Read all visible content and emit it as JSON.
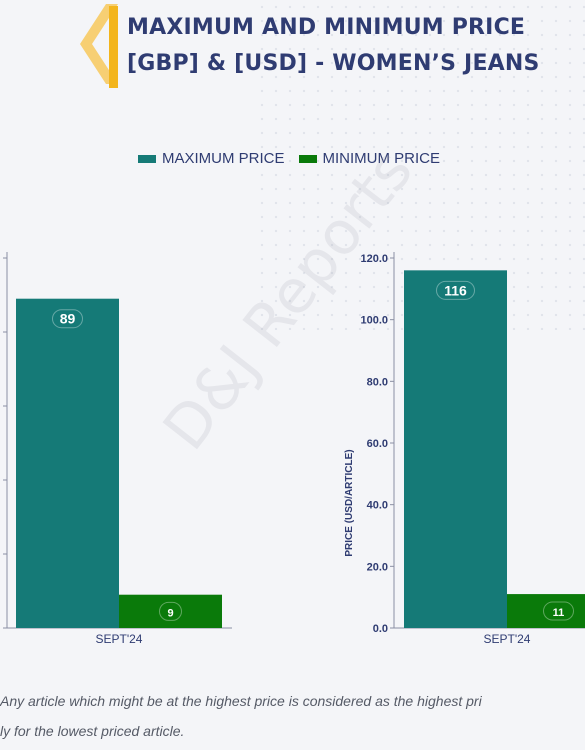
{
  "header": {
    "title_line1": "MAXIMUM AND MINIMUM PRICE",
    "title_line2": "[GBP] & [USD] - WOMEN’S JEANS"
  },
  "legend": [
    {
      "label": "MAXIMUM PRICE",
      "color": "#157a77"
    },
    {
      "label": "MINIMUM PRICE",
      "color": "#0a7a0a"
    }
  ],
  "watermark": "D&J Reports",
  "chart_data": [
    {
      "type": "bar",
      "currency": "GBP",
      "categories": [
        "SEPT'24"
      ],
      "series": [
        {
          "name": "MAXIMUM PRICE",
          "values": [
            89
          ]
        },
        {
          "name": "MINIMUM PRICE",
          "values": [
            9
          ]
        }
      ],
      "ylabel": "",
      "ylim": [
        0,
        100
      ]
    },
    {
      "type": "bar",
      "currency": "USD",
      "categories": [
        "SEPT'24"
      ],
      "series": [
        {
          "name": "MAXIMUM PRICE",
          "values": [
            116
          ]
        },
        {
          "name": "MINIMUM PRICE",
          "values": [
            11
          ]
        }
      ],
      "ylabel": "PRICE (USD/ARTICLE)",
      "ylim": [
        0,
        120
      ],
      "yticks": [
        "0.0",
        "20.0",
        "40.0",
        "60.0",
        "80.0",
        "100.0",
        "120.0"
      ]
    }
  ],
  "footnote": {
    "line1": "Any article which might be at the highest price is considered as the highest pri",
    "line2": "ly for the lowest priced article."
  }
}
